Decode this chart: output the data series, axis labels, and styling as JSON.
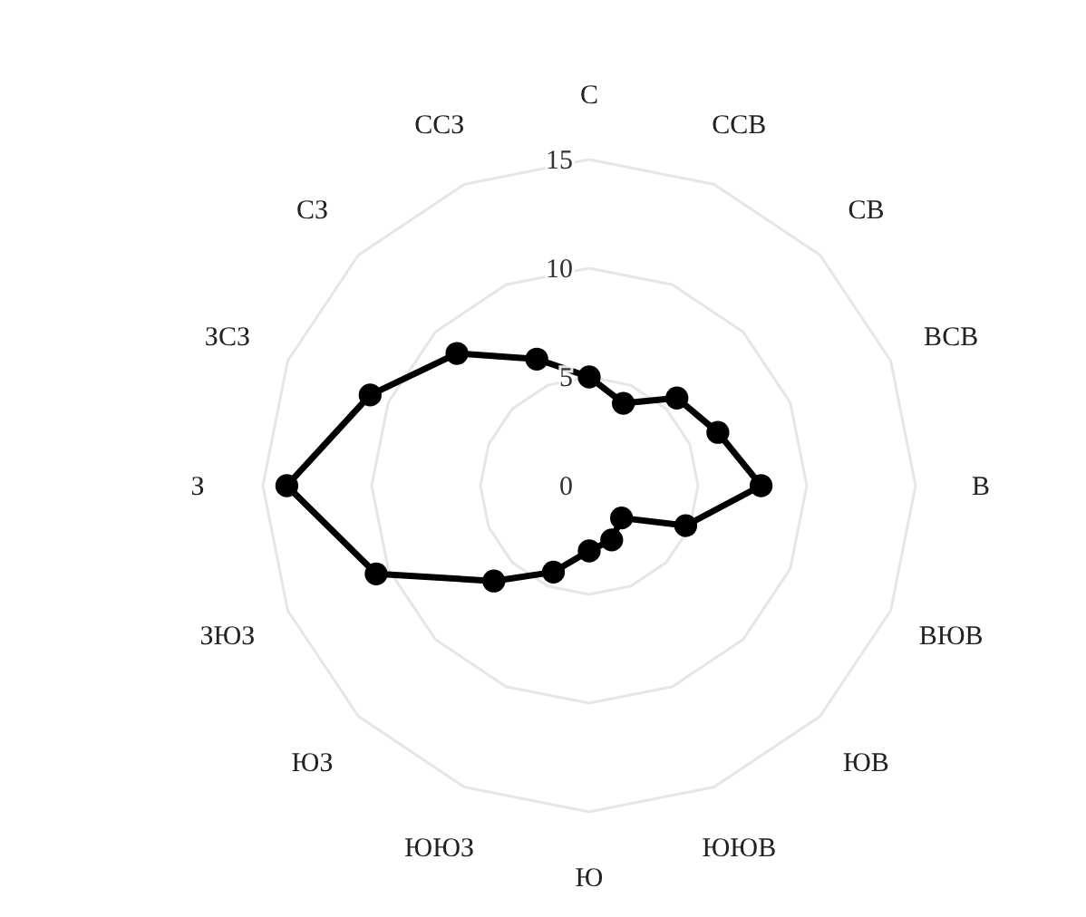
{
  "chart_data": {
    "type": "radar",
    "categories": [
      "С",
      "ССВ",
      "СВ",
      "ВСВ",
      "В",
      "ВЮВ",
      "ЮВ",
      "ЮЮВ",
      "Ю",
      "ЮЮЗ",
      "ЮЗ",
      "ЗЮЗ",
      "З",
      "ЗСЗ",
      "СЗ",
      "ССЗ"
    ],
    "series": [
      {
        "color": "#000000",
        "values": [
          5.0,
          4.1,
          5.7,
          6.4,
          7.9,
          4.8,
          2.1,
          2.7,
          3.0,
          4.3,
          6.2,
          10.6,
          13.9,
          10.9,
          8.6,
          6.3
        ]
      }
    ],
    "ylim": [
      0,
      15
    ],
    "yticks": [
      0,
      5,
      10,
      15
    ],
    "grid": true,
    "marker": "circle",
    "line_style": "solid"
  }
}
